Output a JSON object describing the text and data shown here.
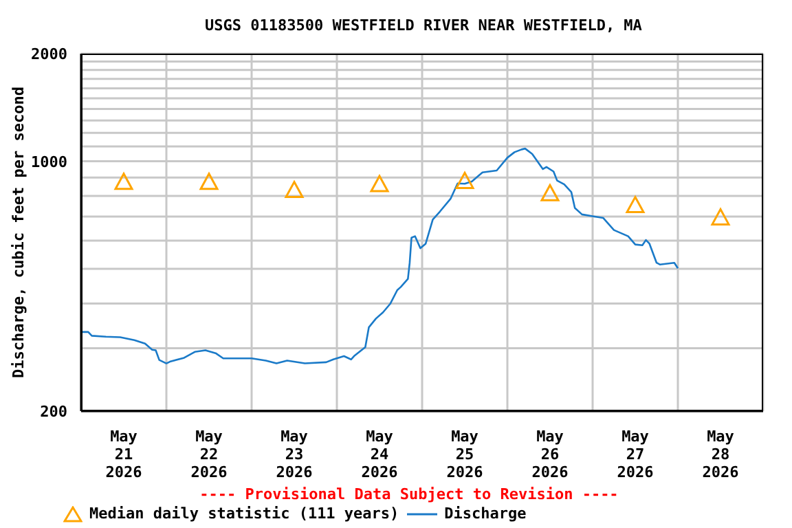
{
  "chart_data": {
    "type": "line",
    "title": "USGS 01183500 WESTFIELD RIVER NEAR WESTFIELD, MA",
    "ylabel": "Discharge, cubic feet per second",
    "annotations": [
      "---- Provisional Data Subject to Revision ----"
    ],
    "log": "y",
    "grid": true,
    "legend": "bottom",
    "xlim": [
      "2026-05-21T00:00",
      "2026-05-29T00:00"
    ],
    "xticks": [
      {
        "value": "2026-05-21T00:00",
        "label": null
      },
      {
        "value": "2026-05-21T12:00",
        "label": "May\n21\n2026"
      },
      {
        "value": "2026-05-22T00:00",
        "label": null
      },
      {
        "value": "2026-05-22T12:00",
        "label": "May\n22\n2026"
      },
      {
        "value": "2026-05-23T00:00",
        "label": null
      },
      {
        "value": "2026-05-23T12:00",
        "label": "May\n23\n2026"
      },
      {
        "value": "2026-05-24T00:00",
        "label": null
      },
      {
        "value": "2026-05-24T12:00",
        "label": "May\n24\n2026"
      },
      {
        "value": "2026-05-25T00:00",
        "label": null
      },
      {
        "value": "2026-05-25T12:00",
        "label": "May\n25\n2026"
      },
      {
        "value": "2026-05-26T00:00",
        "label": null
      },
      {
        "value": "2026-05-26T12:00",
        "label": "May\n26\n2026"
      },
      {
        "value": "2026-05-27T00:00",
        "label": null
      },
      {
        "value": "2026-05-27T12:00",
        "label": "May\n27\n2026"
      },
      {
        "value": "2026-05-28T00:00",
        "label": null
      },
      {
        "value": "2026-05-28T12:00",
        "label": "May\n28\n2026"
      },
      {
        "value": "2026-05-29T00:00",
        "label": null
      }
    ],
    "ylim": [
      200,
      2000
    ],
    "yticks": [
      200,
      {
        "value": 300,
        "label": null
      },
      {
        "value": 400,
        "label": null
      },
      {
        "value": 500,
        "label": null
      },
      {
        "value": 600,
        "label": null
      },
      {
        "value": 700,
        "label": null
      },
      {
        "value": 800,
        "label": null
      },
      {
        "value": 900,
        "label": null
      },
      1000,
      {
        "value": 1100,
        "label": null
      },
      {
        "value": 1200,
        "label": null
      },
      {
        "value": 1300,
        "label": null
      },
      {
        "value": 1400,
        "label": null
      },
      {
        "value": 1500,
        "label": null
      },
      {
        "value": 1600,
        "label": null
      },
      {
        "value": 1700,
        "label": null
      },
      {
        "value": 1800,
        "label": null
      },
      {
        "value": 1900,
        "label": null
      },
      2000
    ],
    "series": [
      {
        "name": "Median daily statistic (111 years)",
        "type": "scatter",
        "marker": "triangle",
        "color": "#ffa500",
        "x": [
          "2026-05-21T12:00",
          "2026-05-22T12:00",
          "2026-05-23T12:00",
          "2026-05-24T12:00",
          "2026-05-25T12:00",
          "2026-05-26T12:00",
          "2026-05-27T12:00",
          "2026-05-28T12:00"
        ],
        "values": [
          875,
          875,
          830,
          862,
          880,
          813,
          753,
          696
        ]
      },
      {
        "name": "Discharge",
        "marker": "none",
        "line_style": "solid",
        "color": "#1a7ac8",
        "x": [
          "2026-05-21T00:00",
          "2026-05-21T02:00",
          "2026-05-21T03:00",
          "2026-05-21T07:00",
          "2026-05-21T11:00",
          "2026-05-21T15:00",
          "2026-05-21T18:00",
          "2026-05-21T20:00",
          "2026-05-21T21:00",
          "2026-05-21T22:00",
          "2026-05-22T00:00",
          "2026-05-22T01:00",
          "2026-05-22T05:00",
          "2026-05-22T08:00",
          "2026-05-22T11:00",
          "2026-05-22T14:00",
          "2026-05-22T16:00",
          "2026-05-23T00:00",
          "2026-05-23T04:00",
          "2026-05-23T07:00",
          "2026-05-23T10:00",
          "2026-05-23T15:00",
          "2026-05-23T21:00",
          "2026-05-23T23:00",
          "2026-05-24T02:00",
          "2026-05-24T04:00",
          "2026-05-24T05:00",
          "2026-05-24T08:00",
          "2026-05-24T09:00",
          "2026-05-24T11:00",
          "2026-05-24T13:00",
          "2026-05-24T15:00",
          "2026-05-24T17:00",
          "2026-05-24T18:00",
          "2026-05-24T20:00",
          "2026-05-24T20:30",
          "2026-05-24T21:00",
          "2026-05-24T22:00",
          "2026-05-24T23:30",
          "2026-05-25T01:00",
          "2026-05-25T03:00",
          "2026-05-25T05:00",
          "2026-05-25T08:00",
          "2026-05-25T10:00",
          "2026-05-25T12:00",
          "2026-05-25T14:00",
          "2026-05-25T17:00",
          "2026-05-25T21:00",
          "2026-05-26T00:00",
          "2026-05-26T02:00",
          "2026-05-26T04:00",
          "2026-05-26T05:00",
          "2026-05-26T07:00",
          "2026-05-26T10:00",
          "2026-05-26T11:00",
          "2026-05-26T13:00",
          "2026-05-26T14:00",
          "2026-05-26T16:00",
          "2026-05-26T18:00",
          "2026-05-26T19:00",
          "2026-05-26T21:00",
          "2026-05-27T00:00",
          "2026-05-27T03:00",
          "2026-05-27T06:00",
          "2026-05-27T10:00",
          "2026-05-27T12:00",
          "2026-05-27T14:00",
          "2026-05-27T15:00",
          "2026-05-27T16:00",
          "2026-05-27T18:00",
          "2026-05-27T19:00",
          "2026-05-27T23:00",
          "2026-05-28T00:00"
        ],
        "values": [
          333,
          333,
          325,
          323,
          322,
          316,
          309,
          297,
          296,
          278,
          272,
          275,
          282,
          293,
          296,
          290,
          281,
          281,
          277,
          272,
          277,
          272,
          274,
          279,
          285,
          279,
          286,
          302,
          343,
          363,
          378,
          399,
          436,
          445,
          469,
          520,
          611,
          617,
          571,
          588,
          687,
          723,
          785,
          867,
          865,
          878,
          931,
          942,
          1023,
          1060,
          1079,
          1085,
          1048,
          951,
          964,
          936,
          883,
          862,
          820,
          740,
          710,
          702,
          694,
          642,
          617,
          585,
          582,
          602,
          588,
          520,
          514,
          520,
          502
        ]
      }
    ]
  }
}
